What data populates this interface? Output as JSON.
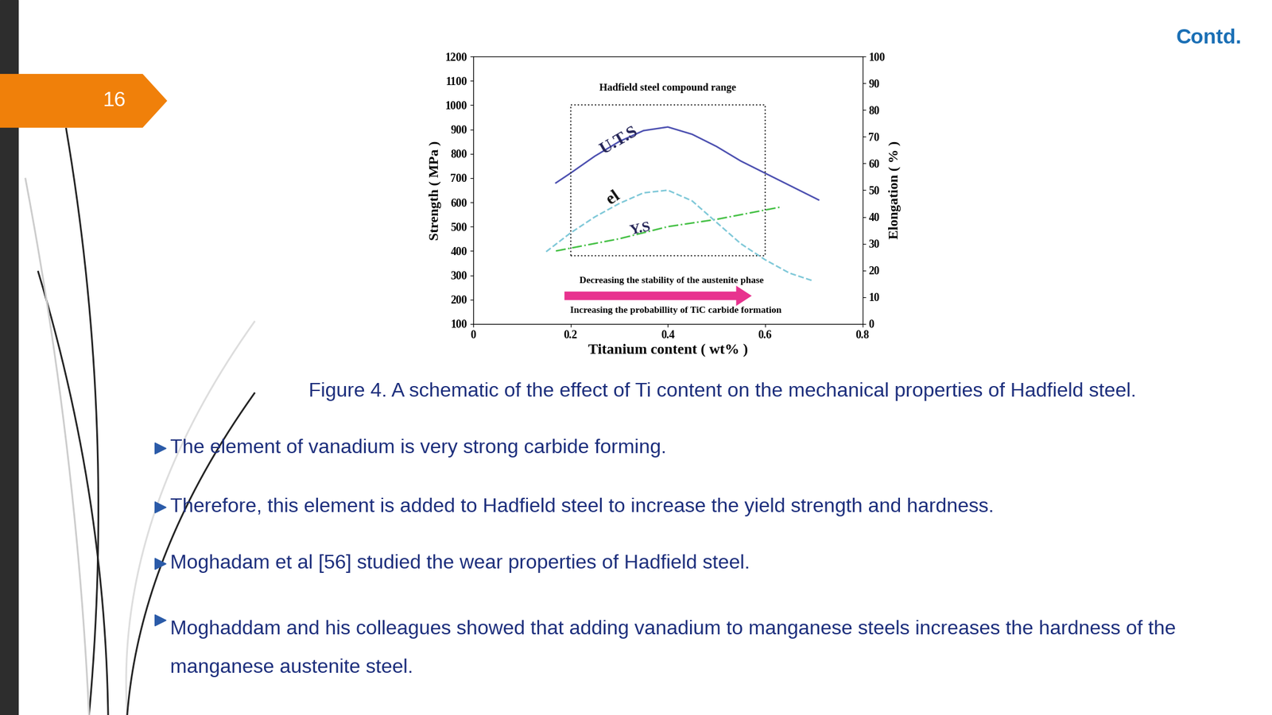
{
  "slide": {
    "page_number": "16",
    "header": "Contd.",
    "caption": "Figure 4. A schematic of the effect of Ti content on the mechanical properties of Hadfield steel.",
    "bullets": [
      "The element of vanadium is very strong carbide forming.",
      "Therefore, this element is added to Hadfield steel to increase the yield strength and hardness.",
      "Moghadam et al [56] studied the wear properties of Hadfield steel.",
      "Moghaddam and his colleagues showed that adding vanadium to manganese steels increases the hardness of the manganese austenite steel."
    ]
  },
  "chart_data": {
    "type": "line",
    "xlabel": "Titanium content ( wt% )",
    "ylabel": "Strength ( MPa )",
    "y2label": "Elongation ( % )",
    "xlim": [
      0,
      0.8
    ],
    "xticks": [
      0,
      0.2,
      0.4,
      0.6,
      0.8
    ],
    "ylim": [
      100,
      1200
    ],
    "yticks": [
      100,
      200,
      300,
      400,
      500,
      600,
      700,
      800,
      900,
      1000,
      1100,
      1200
    ],
    "y2lim": [
      0,
      100
    ],
    "y2ticks": [
      0,
      10,
      20,
      30,
      40,
      50,
      60,
      70,
      80,
      90,
      100
    ],
    "grid": false,
    "series": [
      {
        "name": "U.T.S",
        "color": "#4b4fb0",
        "line_style": "solid",
        "x": [
          0.17,
          0.2,
          0.25,
          0.3,
          0.35,
          0.4,
          0.45,
          0.5,
          0.55,
          0.6,
          0.65,
          0.71
        ],
        "values": [
          680,
          720,
          790,
          850,
          895,
          910,
          880,
          830,
          770,
          720,
          670,
          610
        ]
      },
      {
        "name": "el",
        "color": "#7ec8d8",
        "line_style": "dashed",
        "axis": "y2",
        "x": [
          0.15,
          0.2,
          0.25,
          0.3,
          0.35,
          0.4,
          0.45,
          0.5,
          0.55,
          0.6,
          0.65,
          0.7
        ],
        "values": [
          27,
          34,
          40,
          45,
          49,
          50,
          46,
          38,
          30,
          24,
          19,
          16
        ]
      },
      {
        "name": "Y.S",
        "color": "#44c044",
        "line_style": "dashdot",
        "x": [
          0.17,
          0.3,
          0.4,
          0.5,
          0.63
        ],
        "values": [
          400,
          450,
          500,
          530,
          580
        ]
      }
    ],
    "box": {
      "label": "Hadfield steel compound range",
      "range": [
        0.2,
        0.6
      ]
    },
    "arrow": {
      "color": "#e8338f",
      "texts": [
        "Decreasing the stability of the austenite phase",
        "Increasing the probabillity of TiC carbide formation"
      ]
    }
  }
}
